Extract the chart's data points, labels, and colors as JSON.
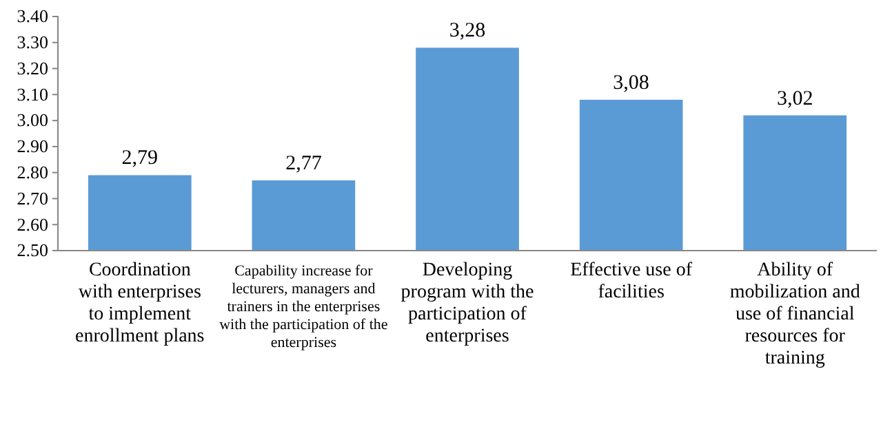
{
  "chart_data": {
    "type": "bar",
    "categories": [
      "Coordination with enterprises to implement enrollment plans",
      "Capability increase for lecturers, managers and trainers in the enterprises with the participation of the enterprises",
      "Developing program with the participation of enterprises",
      "Effective use of facilities",
      "Ability of mobilization and use of financial resources for training"
    ],
    "values": [
      2.79,
      2.77,
      3.28,
      3.08,
      3.02
    ],
    "value_labels": [
      "2,79",
      "2,77",
      "3,28",
      "3,08",
      "3,02"
    ],
    "color": "#5b9bd5",
    "ylim": [
      2.5,
      3.4
    ],
    "yticks": [
      {
        "value": 2.5,
        "label": "2.50"
      },
      {
        "value": 2.6,
        "label": "2.60"
      },
      {
        "value": 2.7,
        "label": "2.70"
      },
      {
        "value": 2.8,
        "label": "2.80"
      },
      {
        "value": 2.9,
        "label": "2.90"
      },
      {
        "value": 3.0,
        "label": "3.00"
      },
      {
        "value": 3.1,
        "label": "3.10"
      },
      {
        "value": 3.2,
        "label": "3.20"
      },
      {
        "value": 3.3,
        "label": "3.30"
      },
      {
        "value": 3.4,
        "label": "3.40"
      }
    ],
    "grid": false
  }
}
